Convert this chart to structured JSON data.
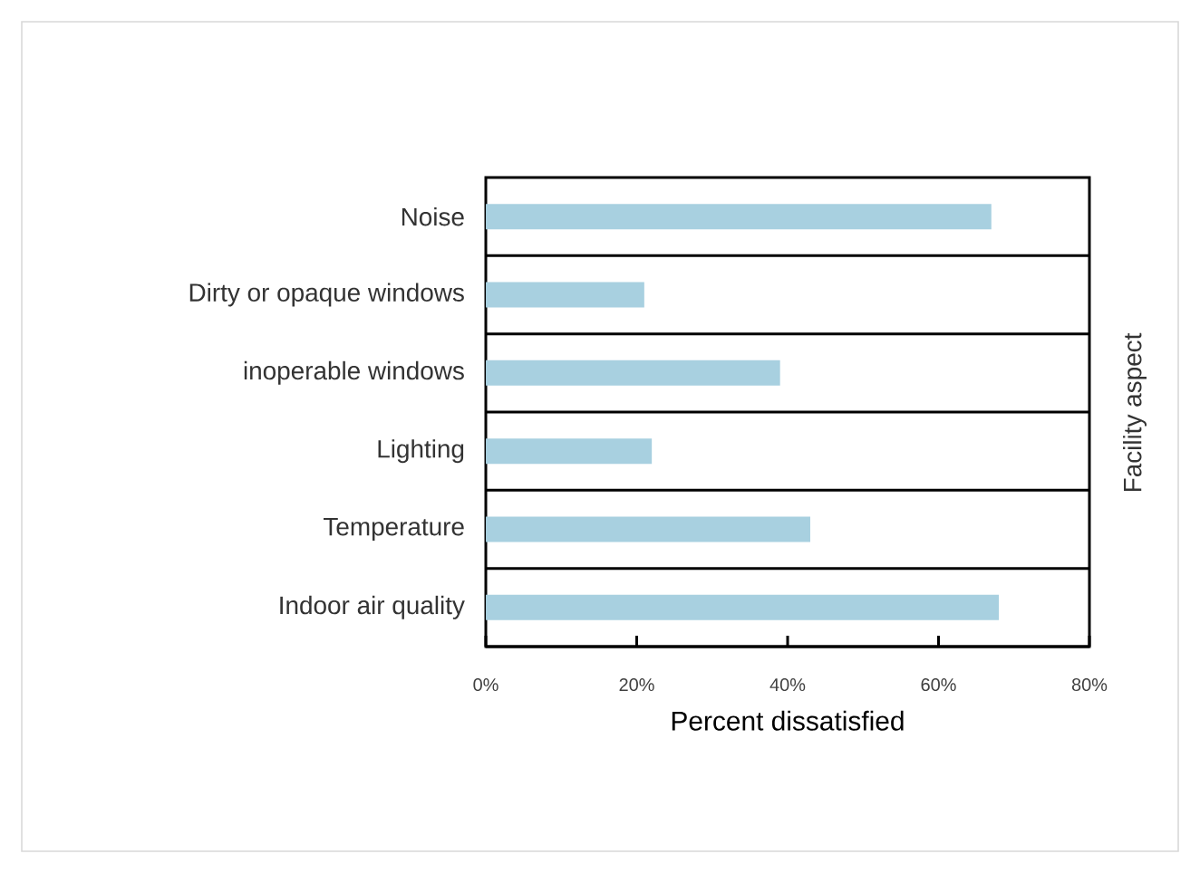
{
  "chart_data": {
    "type": "bar",
    "orientation": "horizontal",
    "xlabel": "Percent dissatisfied",
    "y2label": "Facility aspect",
    "categories": [
      "Noise",
      "Dirty or opaque windows",
      "inoperable windows",
      "Lighting",
      "Temperature",
      "Indoor air quality"
    ],
    "values": [
      67,
      21,
      39,
      22,
      43,
      68
    ],
    "color": "#a8d0e0",
    "xlim": [
      0,
      80
    ],
    "xticks": [
      {
        "value": 0,
        "label": "0%"
      },
      {
        "value": 20,
        "label": "20%"
      },
      {
        "value": 40,
        "label": "40%"
      },
      {
        "value": 60,
        "label": "60%"
      },
      {
        "value": 80,
        "label": "80%"
      }
    ],
    "grid": "y"
  }
}
